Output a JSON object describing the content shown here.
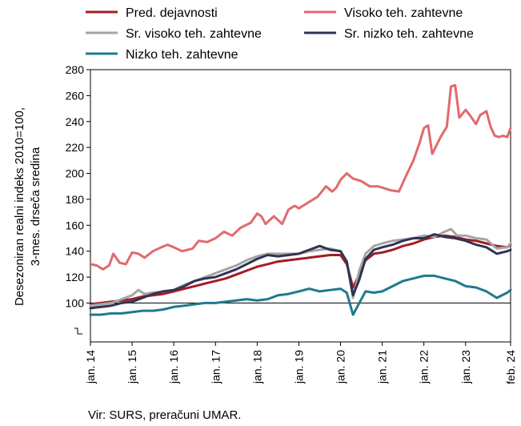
{
  "chart_data": {
    "type": "line",
    "ylabel_lines": [
      "Desezoniran realni indeks 2010=100,",
      "3-mes. drseča sredina"
    ],
    "ylim": [
      70,
      280
    ],
    "yticks": [
      100,
      120,
      140,
      160,
      180,
      200,
      220,
      240,
      260,
      280
    ],
    "xlim": [
      2014.0,
      2024.08
    ],
    "xticks": [
      {
        "label": "jan. 14",
        "x": 2014.0
      },
      {
        "label": "jan. 15",
        "x": 2015.0
      },
      {
        "label": "jan. 16",
        "x": 2016.0
      },
      {
        "label": "jan. 17",
        "x": 2017.0
      },
      {
        "label": "jan. 18",
        "x": 2018.0
      },
      {
        "label": "jan. 19",
        "x": 2019.0
      },
      {
        "label": "jan. 20",
        "x": 2020.0
      },
      {
        "label": "jan. 21",
        "x": 2021.0
      },
      {
        "label": "jan. 22",
        "x": 2022.0
      },
      {
        "label": "jan. 23",
        "x": 2023.0
      },
      {
        "label": "feb. 24",
        "x": 2024.08
      }
    ],
    "reference_line": 100,
    "grid": false,
    "legend_position": "top",
    "series": [
      {
        "name": "Pred. dejavnosti",
        "color": "#a31c24",
        "points": [
          [
            2014,
            99
          ],
          [
            2014.25,
            100
          ],
          [
            2014.5,
            101
          ],
          [
            2014.75,
            102
          ],
          [
            2015,
            103
          ],
          [
            2015.25,
            105
          ],
          [
            2015.5,
            106
          ],
          [
            2015.75,
            107
          ],
          [
            2016,
            109
          ],
          [
            2016.25,
            111
          ],
          [
            2016.5,
            113
          ],
          [
            2016.75,
            115
          ],
          [
            2017,
            117
          ],
          [
            2017.25,
            119
          ],
          [
            2017.5,
            122
          ],
          [
            2017.75,
            125
          ],
          [
            2018,
            128
          ],
          [
            2018.25,
            130
          ],
          [
            2018.5,
            132
          ],
          [
            2018.75,
            133
          ],
          [
            2019,
            134
          ],
          [
            2019.25,
            135
          ],
          [
            2019.5,
            136
          ],
          [
            2019.75,
            137
          ],
          [
            2020,
            137
          ],
          [
            2020.15,
            130
          ],
          [
            2020.3,
            112
          ],
          [
            2020.45,
            122
          ],
          [
            2020.6,
            133
          ],
          [
            2020.8,
            138
          ],
          [
            2021,
            139
          ],
          [
            2021.25,
            141
          ],
          [
            2021.5,
            144
          ],
          [
            2021.75,
            146
          ],
          [
            2022,
            149
          ],
          [
            2022.25,
            151
          ],
          [
            2022.5,
            152
          ],
          [
            2022.75,
            151
          ],
          [
            2023,
            149
          ],
          [
            2023.25,
            148
          ],
          [
            2023.5,
            146
          ],
          [
            2023.75,
            144
          ],
          [
            2024,
            143
          ],
          [
            2024.08,
            145
          ]
        ]
      },
      {
        "name": "Visoko teh. zahtevne",
        "color": "#e06a6e",
        "points": [
          [
            2014,
            130
          ],
          [
            2014.15,
            129
          ],
          [
            2014.3,
            126
          ],
          [
            2014.45,
            129
          ],
          [
            2014.55,
            138
          ],
          [
            2014.7,
            131
          ],
          [
            2014.85,
            130
          ],
          [
            2015,
            139
          ],
          [
            2015.15,
            138
          ],
          [
            2015.3,
            135
          ],
          [
            2015.5,
            140
          ],
          [
            2015.7,
            143
          ],
          [
            2015.85,
            145
          ],
          [
            2016,
            143
          ],
          [
            2016.2,
            140
          ],
          [
            2016.45,
            142
          ],
          [
            2016.6,
            148
          ],
          [
            2016.8,
            147
          ],
          [
            2017,
            150
          ],
          [
            2017.2,
            155
          ],
          [
            2017.4,
            152
          ],
          [
            2017.6,
            158
          ],
          [
            2017.85,
            162
          ],
          [
            2018,
            169
          ],
          [
            2018.1,
            167
          ],
          [
            2018.2,
            161
          ],
          [
            2018.4,
            167
          ],
          [
            2018.6,
            161
          ],
          [
            2018.75,
            172
          ],
          [
            2018.9,
            175
          ],
          [
            2019,
            173
          ],
          [
            2019.25,
            178
          ],
          [
            2019.45,
            182
          ],
          [
            2019.65,
            190
          ],
          [
            2019.8,
            186
          ],
          [
            2019.9,
            189
          ],
          [
            2020,
            195
          ],
          [
            2020.15,
            200
          ],
          [
            2020.3,
            196
          ],
          [
            2020.5,
            194
          ],
          [
            2020.7,
            190
          ],
          [
            2020.9,
            190
          ],
          [
            2021,
            189
          ],
          [
            2021.2,
            187
          ],
          [
            2021.4,
            186
          ],
          [
            2021.6,
            200
          ],
          [
            2021.75,
            210
          ],
          [
            2021.9,
            224
          ],
          [
            2022,
            235
          ],
          [
            2022.1,
            237
          ],
          [
            2022.2,
            215
          ],
          [
            2022.4,
            228
          ],
          [
            2022.55,
            236
          ],
          [
            2022.65,
            267
          ],
          [
            2022.75,
            268
          ],
          [
            2022.85,
            243
          ],
          [
            2023,
            249
          ],
          [
            2023.1,
            245
          ],
          [
            2023.25,
            238
          ],
          [
            2023.35,
            245
          ],
          [
            2023.5,
            248
          ],
          [
            2023.6,
            236
          ],
          [
            2023.7,
            229
          ],
          [
            2023.8,
            228
          ],
          [
            2023.9,
            229
          ],
          [
            2024,
            228
          ],
          [
            2024.08,
            235
          ]
        ]
      },
      {
        "name": "Sr. visoko teh. zahtevne",
        "color": "#a5a5a5",
        "points": [
          [
            2014,
            98
          ],
          [
            2014.25,
            99
          ],
          [
            2014.5,
            100
          ],
          [
            2014.75,
            103
          ],
          [
            2015,
            106
          ],
          [
            2015.15,
            110
          ],
          [
            2015.3,
            107
          ],
          [
            2015.5,
            108
          ],
          [
            2015.75,
            109
          ],
          [
            2016,
            110
          ],
          [
            2016.25,
            114
          ],
          [
            2016.5,
            117
          ],
          [
            2016.75,
            120
          ],
          [
            2017,
            123
          ],
          [
            2017.25,
            126
          ],
          [
            2017.5,
            129
          ],
          [
            2017.75,
            133
          ],
          [
            2018,
            136
          ],
          [
            2018.25,
            138
          ],
          [
            2018.5,
            138
          ],
          [
            2018.75,
            138
          ],
          [
            2019,
            138
          ],
          [
            2019.25,
            140
          ],
          [
            2019.5,
            141
          ],
          [
            2019.75,
            142
          ],
          [
            2020,
            140
          ],
          [
            2020.15,
            132
          ],
          [
            2020.3,
            104
          ],
          [
            2020.45,
            125
          ],
          [
            2020.6,
            138
          ],
          [
            2020.8,
            144
          ],
          [
            2021,
            146
          ],
          [
            2021.25,
            148
          ],
          [
            2021.5,
            149
          ],
          [
            2021.75,
            150
          ],
          [
            2022,
            152
          ],
          [
            2022.25,
            151
          ],
          [
            2022.5,
            155
          ],
          [
            2022.65,
            157
          ],
          [
            2022.8,
            152
          ],
          [
            2023,
            152
          ],
          [
            2023.25,
            150
          ],
          [
            2023.5,
            149
          ],
          [
            2023.75,
            142
          ],
          [
            2024,
            143
          ],
          [
            2024.08,
            146
          ]
        ]
      },
      {
        "name": "Sr. nizko teh. zahtevne",
        "color": "#2f3553",
        "points": [
          [
            2014,
            96
          ],
          [
            2014.25,
            97
          ],
          [
            2014.5,
            98
          ],
          [
            2014.75,
            100
          ],
          [
            2015,
            101
          ],
          [
            2015.25,
            104
          ],
          [
            2015.5,
            107
          ],
          [
            2015.75,
            109
          ],
          [
            2016,
            110
          ],
          [
            2016.25,
            113
          ],
          [
            2016.5,
            117
          ],
          [
            2016.75,
            119
          ],
          [
            2017,
            120
          ],
          [
            2017.25,
            123
          ],
          [
            2017.5,
            126
          ],
          [
            2017.75,
            130
          ],
          [
            2018,
            134
          ],
          [
            2018.25,
            137
          ],
          [
            2018.5,
            136
          ],
          [
            2018.75,
            137
          ],
          [
            2019,
            138
          ],
          [
            2019.25,
            141
          ],
          [
            2019.5,
            144
          ],
          [
            2019.75,
            141
          ],
          [
            2020,
            140
          ],
          [
            2020.15,
            132
          ],
          [
            2020.3,
            106
          ],
          [
            2020.45,
            118
          ],
          [
            2020.6,
            134
          ],
          [
            2020.8,
            141
          ],
          [
            2021,
            143
          ],
          [
            2021.25,
            145
          ],
          [
            2021.5,
            148
          ],
          [
            2021.75,
            150
          ],
          [
            2022,
            150
          ],
          [
            2022.25,
            153
          ],
          [
            2022.5,
            151
          ],
          [
            2022.75,
            150
          ],
          [
            2023,
            148
          ],
          [
            2023.25,
            145
          ],
          [
            2023.5,
            143
          ],
          [
            2023.75,
            138
          ],
          [
            2024,
            140
          ],
          [
            2024.08,
            141
          ]
        ]
      },
      {
        "name": "Nizko teh. zahtevne",
        "color": "#1f7a8c",
        "points": [
          [
            2014,
            91
          ],
          [
            2014.25,
            91
          ],
          [
            2014.5,
            92
          ],
          [
            2014.75,
            92
          ],
          [
            2015,
            93
          ],
          [
            2015.25,
            94
          ],
          [
            2015.5,
            94
          ],
          [
            2015.75,
            95
          ],
          [
            2016,
            97
          ],
          [
            2016.25,
            98
          ],
          [
            2016.5,
            99
          ],
          [
            2016.75,
            100
          ],
          [
            2017,
            100
          ],
          [
            2017.25,
            101
          ],
          [
            2017.5,
            102
          ],
          [
            2017.75,
            103
          ],
          [
            2018,
            102
          ],
          [
            2018.25,
            103
          ],
          [
            2018.5,
            106
          ],
          [
            2018.75,
            107
          ],
          [
            2019,
            109
          ],
          [
            2019.25,
            111
          ],
          [
            2019.5,
            109
          ],
          [
            2019.75,
            110
          ],
          [
            2020,
            111
          ],
          [
            2020.15,
            108
          ],
          [
            2020.3,
            91
          ],
          [
            2020.45,
            100
          ],
          [
            2020.6,
            109
          ],
          [
            2020.8,
            108
          ],
          [
            2021,
            109
          ],
          [
            2021.25,
            113
          ],
          [
            2021.5,
            117
          ],
          [
            2021.75,
            119
          ],
          [
            2022,
            121
          ],
          [
            2022.25,
            121
          ],
          [
            2022.5,
            119
          ],
          [
            2022.75,
            117
          ],
          [
            2023,
            113
          ],
          [
            2023.25,
            112
          ],
          [
            2023.5,
            109
          ],
          [
            2023.75,
            104
          ],
          [
            2024,
            108
          ],
          [
            2024.08,
            110
          ]
        ]
      }
    ]
  },
  "source": "Vir: SURS, preračuni UMAR."
}
